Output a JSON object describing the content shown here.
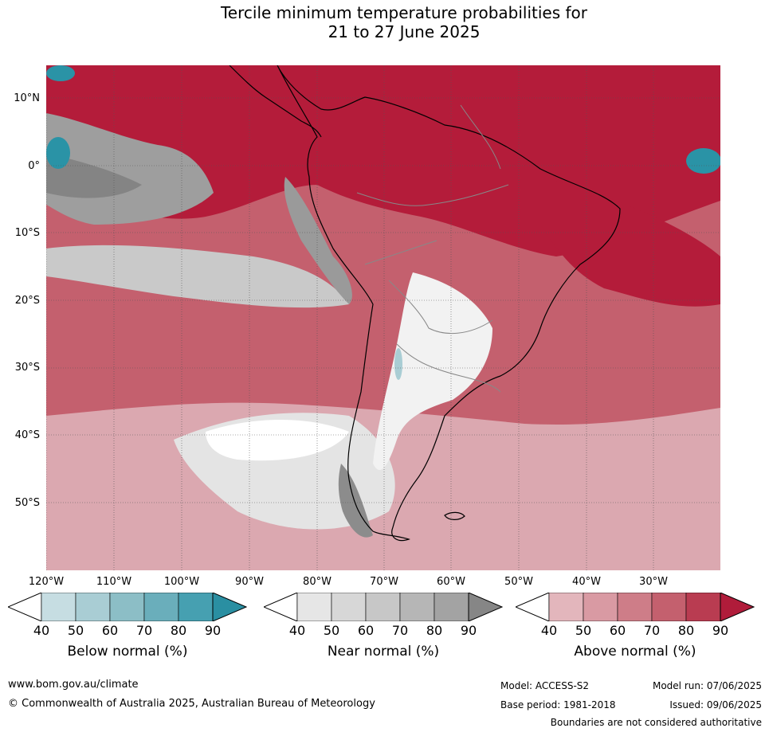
{
  "header": {
    "title_line1": "Tercile minimum temperature probabilities for",
    "title_line2": "21 to 27 June 2025"
  },
  "map": {
    "lat_labels": [
      "10°N",
      "0°",
      "10°S",
      "20°S",
      "30°S",
      "40°S",
      "50°S"
    ],
    "lon_labels": [
      "120°W",
      "110°W",
      "100°W",
      "90°W",
      "80°W",
      "70°W",
      "60°W",
      "50°W",
      "40°W",
      "30°W"
    ],
    "colors": {
      "ocean_high": "#b41c3a",
      "ocean_mid": "#c85568",
      "ocean_low": "#dba8b0",
      "near": "#d9d9d9",
      "near_dark": "#8c8c8c",
      "below": "#2a93a6",
      "land_white": "#ffffff"
    }
  },
  "legends": [
    {
      "title": "Below normal (%)",
      "ticks": [
        "40",
        "50",
        "60",
        "70",
        "80",
        "90"
      ],
      "colors": [
        "#c6dde2",
        "#a9cdd4",
        "#8cbec6",
        "#6aaebb",
        "#46a0b1",
        "#2a8fa2"
      ]
    },
    {
      "title": "Near normal (%)",
      "ticks": [
        "40",
        "50",
        "60",
        "70",
        "80",
        "90"
      ],
      "colors": [
        "#e6e6e6",
        "#d7d7d7",
        "#c7c7c7",
        "#b6b6b6",
        "#a3a3a3",
        "#868686"
      ]
    },
    {
      "title": "Above normal (%)",
      "ticks": [
        "40",
        "50",
        "60",
        "70",
        "80",
        "90"
      ],
      "colors": [
        "#e3b6bc",
        "#d99aa3",
        "#ce7d88",
        "#c4606e",
        "#b93c51",
        "#b01c3a"
      ]
    }
  ],
  "footer": {
    "website": "www.bom.gov.au/climate",
    "copyright": "© Commonwealth of Australia 2025, Australian Bureau of Meteorology",
    "model": "Model: ACCESS-S2",
    "base_period": "Base period: 1981-2018",
    "model_run": "Model run: 07/06/2025",
    "issued": "Issued: 09/06/2025",
    "disclaimer": "Boundaries are not considered authoritative"
  }
}
